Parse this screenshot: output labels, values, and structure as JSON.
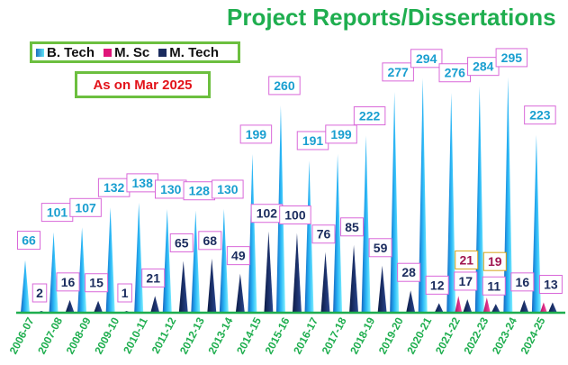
{
  "chart_data": {
    "type": "bar",
    "title": "Project Reports/Dissertations",
    "subtitle": "As on Mar 2025",
    "categories": [
      "2006-07",
      "2007-08",
      "2008-09",
      "2009-10",
      "2010-11",
      "2011-12",
      "2012-13",
      "2013-14",
      "2014-15",
      "2015-16",
      "2016-17",
      "2017-18",
      "2018-19",
      "2019-20",
      "2020-21",
      "2021-22",
      "2022-23",
      "2023-24",
      "2024-25"
    ],
    "series": [
      {
        "name": "B. Tech",
        "color": "#1ab0e0",
        "values": [
          66,
          101,
          107,
          132,
          138,
          130,
          128,
          130,
          199,
          260,
          191,
          199,
          222,
          277,
          294,
          276,
          284,
          295,
          223
        ]
      },
      {
        "name": "M. Sc",
        "color": "#e0157a",
        "values": [
          0,
          0,
          0,
          0,
          0,
          0,
          0,
          0,
          0,
          0,
          0,
          0,
          0,
          0,
          0,
          21,
          19,
          0,
          13
        ]
      },
      {
        "name": "M. Tech",
        "color": "#1b2c5e",
        "values": [
          2,
          16,
          15,
          1,
          21,
          65,
          68,
          49,
          102,
          100,
          76,
          85,
          59,
          28,
          12,
          17,
          11,
          16,
          13
        ]
      }
    ],
    "mtech_labels": [
      "2",
      "16",
      "15",
      "1",
      "21",
      "65",
      "68",
      "49",
      "102",
      "100",
      "76",
      "85",
      "59",
      "28",
      "12",
      "17",
      "11",
      "16",
      "13"
    ],
    "msc_labels": [
      "21",
      "19"
    ],
    "xlabel": "",
    "ylabel": "",
    "ylim": [
      0,
      320
    ],
    "legend_position": "top-left"
  },
  "legend": {
    "btech": "B. Tech",
    "msc": "M. Sc",
    "mtech": "M. Tech"
  },
  "asof": "As on Mar 2025"
}
